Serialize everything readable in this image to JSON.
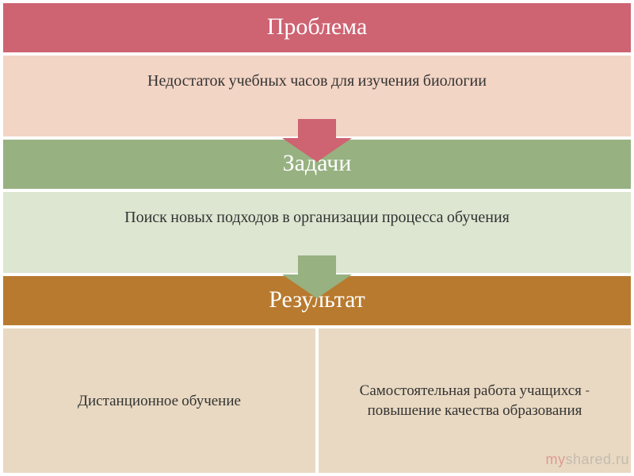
{
  "diagram": {
    "type": "flowchart",
    "sections": [
      {
        "title": "Проблема",
        "subtitle": "Недостаток учебных часов для изучения биологии",
        "header_bg": "#ce6372",
        "header_fg": "#ffffff",
        "sub_bg": "#f3d5c5",
        "sub_fg": "#333333",
        "arrow_color": "#ce6372",
        "title_fontsize": 30,
        "subtitle_fontsize": 20
      },
      {
        "title": "Задачи",
        "subtitle": "Поиск новых подходов в организации процесса обучения",
        "header_bg": "#97b181",
        "header_fg": "#ffffff",
        "sub_bg": "#dce6d1",
        "sub_fg": "#333333",
        "arrow_color": "#97b181",
        "title_fontsize": 30,
        "subtitle_fontsize": 20
      },
      {
        "title": "Результат",
        "header_bg": "#b87a2f",
        "header_fg": "#ffffff",
        "title_fontsize": 30,
        "bottom_cells": [
          {
            "text": "Дистанционное обучение",
            "bg": "#e9d9c2",
            "fg": "#333333",
            "fontsize": 19
          },
          {
            "text": "Самостоятельная работа учащихся - повышение качества образования",
            "bg": "#e9d9c2",
            "fg": "#333333",
            "fontsize": 19
          }
        ]
      }
    ],
    "border_color": "#ffffff",
    "font_family": "Cambria, Georgia, serif",
    "arrow": {
      "body_width": 48,
      "body_height": 24,
      "head_width": 88,
      "head_height": 30
    }
  },
  "watermark": {
    "prefix": "my",
    "suffix": "shared.ru",
    "prefix_color": "#cf4d5a",
    "suffix_color": "#9a9a9a"
  }
}
